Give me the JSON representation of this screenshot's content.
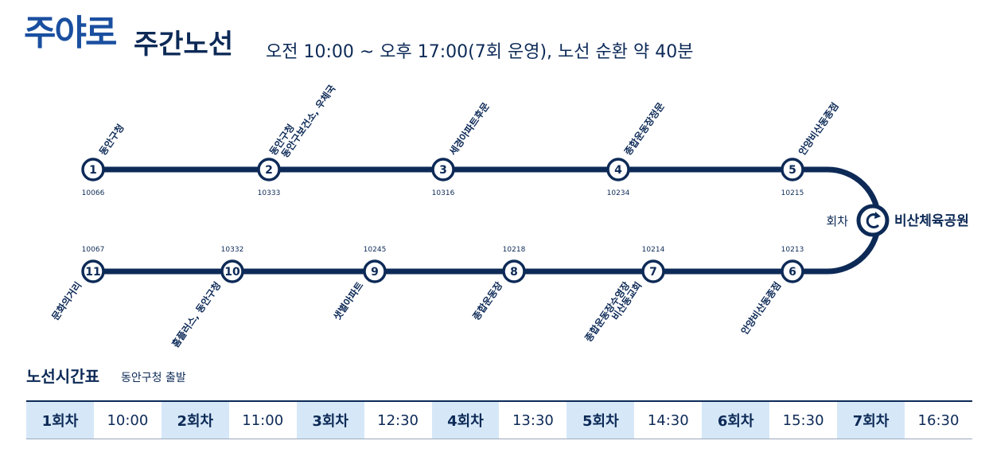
{
  "header": {
    "logo_text": "주야로",
    "route_name": "주간노선",
    "schedule_desc": "오전 10:00 ~ 오후 17:00(7회 운영), 노선 순환 약 40분"
  },
  "stops_top": [
    {
      "num": "1",
      "id": "10066",
      "name_lines": [
        "동안구청"
      ]
    },
    {
      "num": "2",
      "id": "10333",
      "name_lines": [
        "동안구청",
        "동안구보건소, 우체국"
      ]
    },
    {
      "num": "3",
      "id": "10316",
      "name_lines": [
        "세경아파트후문"
      ]
    },
    {
      "num": "4",
      "id": "10234",
      "name_lines": [
        "종합운동장정문"
      ]
    },
    {
      "num": "5",
      "id": "10215",
      "name_lines": [
        "안양비산동종점"
      ]
    }
  ],
  "stops_bottom": [
    {
      "num": "11",
      "id": "10067",
      "name_lines": [
        "문화의거리"
      ]
    },
    {
      "num": "10",
      "id": "10332",
      "name_lines": [
        "홈플러스, 동안구청"
      ]
    },
    {
      "num": "9",
      "id": "10245",
      "name_lines": [
        "샛별아파트"
      ]
    },
    {
      "num": "8",
      "id": "10218",
      "name_lines": [
        "종합운동장"
      ]
    },
    {
      "num": "7",
      "id": "10214",
      "name_lines": [
        "종합운동장수영장",
        "비산동교회"
      ]
    },
    {
      "num": "6",
      "id": "10213",
      "name_lines": [
        "안양비산동종점"
      ]
    }
  ],
  "turnaround": {
    "label": "회차",
    "name": "비산체육공원",
    "icon": "turnaround-icon"
  },
  "timetable": {
    "title": "노선시간표",
    "subtitle": "동안구청 출발",
    "runs": [
      {
        "label": "1회차",
        "time": "10:00"
      },
      {
        "label": "2회차",
        "time": "11:00"
      },
      {
        "label": "3회차",
        "time": "12:30"
      },
      {
        "label": "4회차",
        "time": "13:30"
      },
      {
        "label": "5회차",
        "time": "14:30"
      },
      {
        "label": "6회차",
        "time": "15:30"
      },
      {
        "label": "7회차",
        "time": "16:30"
      }
    ]
  },
  "colors": {
    "line": "#0d2a57",
    "header_cell": "#d6e8f8",
    "logo": "#1a4fa0"
  }
}
